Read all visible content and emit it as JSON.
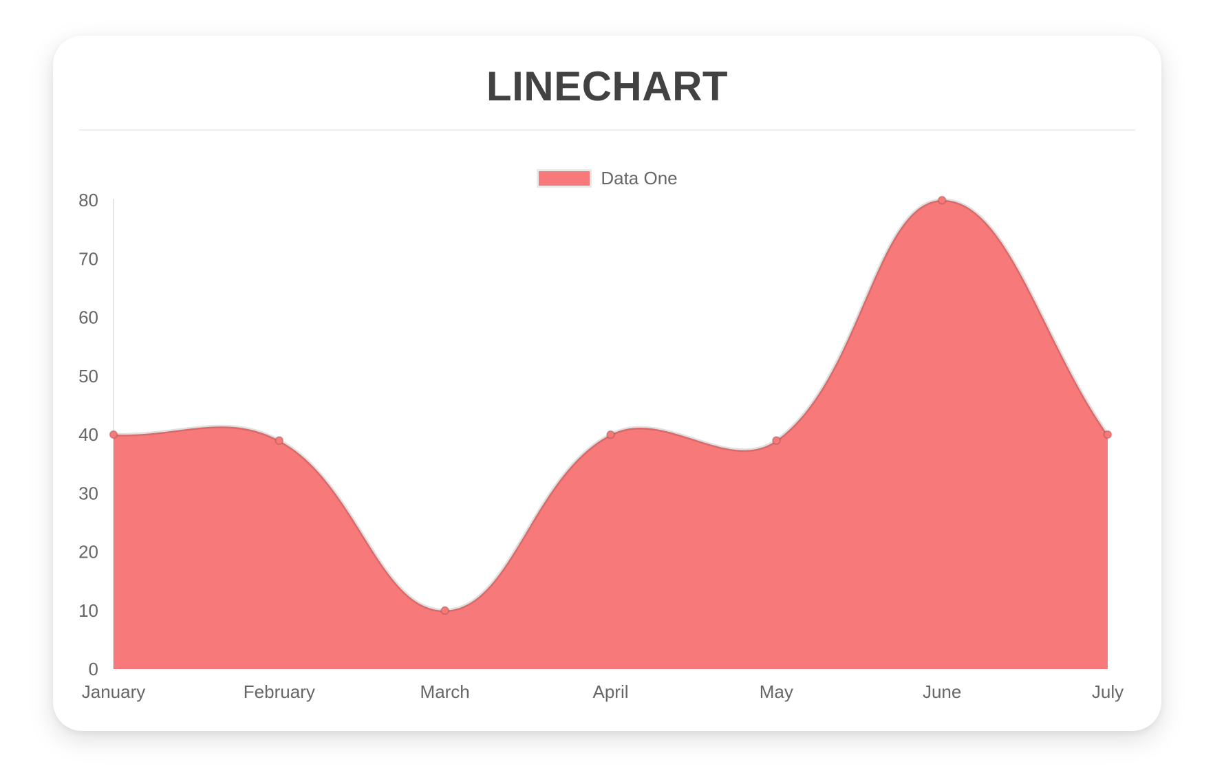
{
  "card": {
    "title": "LINECHART"
  },
  "legend": {
    "label": "Data One",
    "swatch_color": "#f87979"
  },
  "chart_data": {
    "type": "line",
    "title": "LINECHART",
    "categories": [
      "January",
      "February",
      "March",
      "April",
      "May",
      "June",
      "July"
    ],
    "series": [
      {
        "name": "Data One",
        "values": [
          40,
          39,
          10,
          40,
          39,
          80,
          40
        ]
      }
    ],
    "xlabel": "",
    "ylabel": "",
    "ylim": [
      0,
      80
    ],
    "yticks": [
      0,
      10,
      20,
      30,
      40,
      50,
      60,
      70,
      80
    ],
    "grid": false,
    "legend_position": "top-center",
    "curve": "bezier",
    "tension": 0.4,
    "area_filled": true,
    "colors": {
      "fill": "#f87979",
      "line": "rgba(0,0,0,0.12)",
      "point_fill": "#f87979",
      "point_border": "rgba(0,0,0,0.15)",
      "axis_line": "rgba(0,0,0,0.10)",
      "tick_text": "#666666",
      "title_text": "#424242"
    }
  }
}
